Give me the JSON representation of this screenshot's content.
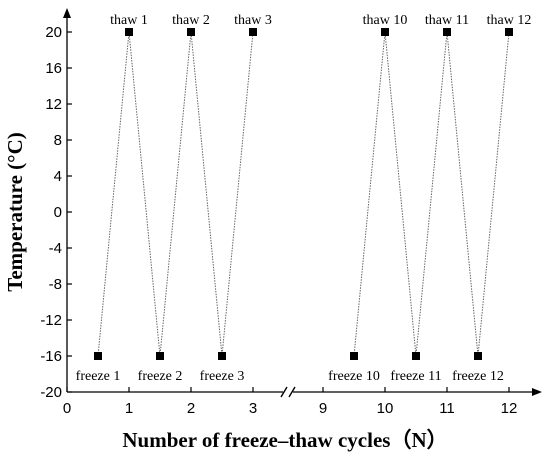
{
  "chart_data": {
    "type": "line",
    "xlabel": "Number of freeze–thaw cycles（N）",
    "ylabel": "Temperature (°C)",
    "ylim": [
      -20,
      20
    ],
    "yticks": [
      20,
      16,
      12,
      8,
      4,
      0,
      -4,
      -8,
      -12,
      -16,
      -20
    ],
    "xticks": [
      0,
      1,
      2,
      3,
      9,
      10,
      11,
      12
    ],
    "axis_break": [
      3,
      9
    ],
    "line_style": "dotted",
    "segments": [
      {
        "points": [
          {
            "x": 0.5,
            "y": -16,
            "label": "freeze 1"
          },
          {
            "x": 1,
            "y": 20,
            "label": "thaw 1"
          },
          {
            "x": 1.5,
            "y": -16,
            "label": "freeze 2"
          },
          {
            "x": 2,
            "y": 20,
            "label": "thaw 2"
          },
          {
            "x": 2.5,
            "y": -16,
            "label": "freeze 3"
          },
          {
            "x": 3,
            "y": 20,
            "label": "thaw 3"
          }
        ]
      },
      {
        "points": [
          {
            "x": 9.5,
            "y": -16,
            "label": "freeze 10"
          },
          {
            "x": 10,
            "y": 20,
            "label": "thaw 10"
          },
          {
            "x": 10.5,
            "y": -16,
            "label": "freeze 11"
          },
          {
            "x": 11,
            "y": 20,
            "label": "thaw 11"
          },
          {
            "x": 11.5,
            "y": -16,
            "label": "freeze 12"
          },
          {
            "x": 12,
            "y": 20,
            "label": "thaw 12"
          }
        ]
      }
    ],
    "colors": {
      "line": "#666666",
      "marker": "#000000",
      "axis": "#000000"
    }
  }
}
